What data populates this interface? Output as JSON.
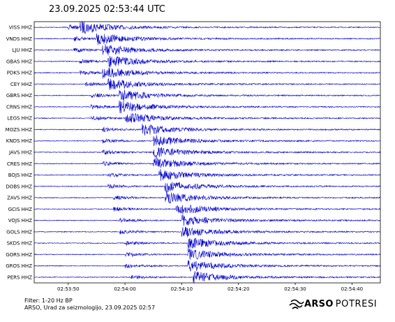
{
  "header": {
    "title": "23.09.2025  02:53:44 UTC"
  },
  "footer": {
    "filter": "Filter: 1-20 Hz BP",
    "credit": "ARSO, Urad za seizmologijo, 23.09.2025  02:57"
  },
  "brand": {
    "name": "ARSO",
    "suffix": "POTRESI",
    "icon": "arso-logo-icon"
  },
  "colors": {
    "trace": "#0000cc",
    "background": "#ffffff",
    "axis": "#000000"
  },
  "chart_data": {
    "type": "line",
    "title": "23.09.2025  02:53:44 UTC",
    "xlabel": "",
    "ylabel": "",
    "grid": false,
    "x_unit": "UTC time",
    "xlim": [
      "02:53:44",
      "02:54:45"
    ],
    "x_ticks": [
      "02:53:50",
      "02:54:00",
      "02:54:10",
      "02:54:20",
      "02:54:30",
      "02:54:40"
    ],
    "series": [
      {
        "name": "VISS HHZ",
        "p_arrival": "02:53:50",
        "s_arrival": "02:53:52"
      },
      {
        "name": "VNDS HHZ",
        "p_arrival": "02:53:51",
        "s_arrival": "02:53:55"
      },
      {
        "name": "LJU HHZ",
        "p_arrival": "02:53:51",
        "s_arrival": "02:53:56"
      },
      {
        "name": "GBAS HHZ",
        "p_arrival": "02:53:52",
        "s_arrival": "02:53:57"
      },
      {
        "name": "PDKS HHZ",
        "p_arrival": "02:53:52",
        "s_arrival": "02:53:56"
      },
      {
        "name": "CEY HHZ",
        "p_arrival": "02:53:53",
        "s_arrival": "02:53:57"
      },
      {
        "name": "GBRS HHZ",
        "p_arrival": "02:53:54",
        "s_arrival": "02:53:59"
      },
      {
        "name": "CRNS HHZ",
        "p_arrival": "02:53:54",
        "s_arrival": "02:53:59"
      },
      {
        "name": "LEGS HHZ",
        "p_arrival": "02:53:54",
        "s_arrival": "02:54:00"
      },
      {
        "name": "MOZS HHZ",
        "p_arrival": "02:53:56",
        "s_arrival": "02:54:03"
      },
      {
        "name": "KNDS HHZ",
        "p_arrival": "02:53:56",
        "s_arrival": "02:54:05"
      },
      {
        "name": "JAVS HHZ",
        "p_arrival": "02:53:56",
        "s_arrival": "02:54:05"
      },
      {
        "name": "CRES HHZ",
        "p_arrival": "02:53:56",
        "s_arrival": "02:54:05"
      },
      {
        "name": "BOJS HHZ",
        "p_arrival": "02:53:57",
        "s_arrival": "02:54:06"
      },
      {
        "name": "DOBS HHZ",
        "p_arrival": "02:53:57",
        "s_arrival": "02:54:07"
      },
      {
        "name": "ZAVS HHZ",
        "p_arrival": "02:53:58",
        "s_arrival": "02:54:07"
      },
      {
        "name": "GCIS HHZ",
        "p_arrival": "02:53:58",
        "s_arrival": "02:54:09"
      },
      {
        "name": "VOJS HHZ",
        "p_arrival": "02:53:59",
        "s_arrival": "02:54:10"
      },
      {
        "name": "GOLS HHZ",
        "p_arrival": "02:53:59",
        "s_arrival": "02:54:10"
      },
      {
        "name": "SKDS HHZ",
        "p_arrival": "02:54:00",
        "s_arrival": "02:54:11"
      },
      {
        "name": "GORS HHZ",
        "p_arrival": "02:54:00",
        "s_arrival": "02:54:11"
      },
      {
        "name": "GROS HHZ",
        "p_arrival": "02:54:00",
        "s_arrival": "02:54:11"
      },
      {
        "name": "PERS HHZ",
        "p_arrival": "02:54:01",
        "s_arrival": "02:54:12"
      }
    ]
  }
}
